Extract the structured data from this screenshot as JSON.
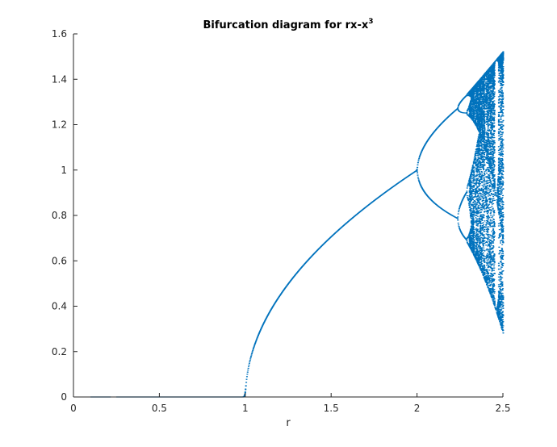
{
  "chart_data": {
    "type": "scatter",
    "title": "Bifurcation diagram for rx-x",
    "title_superscript": "3",
    "xlabel": "r",
    "ylabel": "",
    "xlim": [
      0,
      2.5
    ],
    "ylim": [
      0,
      1.6
    ],
    "xticks": [
      "0",
      "0.5",
      "1",
      "1.5",
      "2",
      "2.5"
    ],
    "yticks": [
      "0",
      "0.2",
      "0.4",
      "0.6",
      "0.8",
      "1",
      "1.2",
      "1.4",
      "1.6"
    ],
    "grid": false,
    "legend": "none",
    "series": [
      {
        "color": "#0072BD",
        "marker": "dot",
        "r_range": [
          0.1,
          2.5
        ],
        "iteration_rule": "x_next = r*x - x^3",
        "branches": [
          {
            "r": [
              0.1,
              1.0
            ],
            "x": "0"
          },
          {
            "r": [
              1.0,
              2.0
            ],
            "x": "sqrt(r-1)"
          },
          {
            "r": [
              2.0,
              2.24
            ],
            "x": "period-2 cycle, bounds ~1.0 to 1.27 and ~0.78"
          },
          {
            "r": [
              2.24,
              2.3
            ],
            "x": "period-4 cycle near 1.27-1.32 and 0.70-0.89"
          },
          {
            "r": [
              2.3,
              2.5
            ],
            "x": "chaotic band spanning ~0.28 to 1.52"
          }
        ]
      }
    ]
  }
}
